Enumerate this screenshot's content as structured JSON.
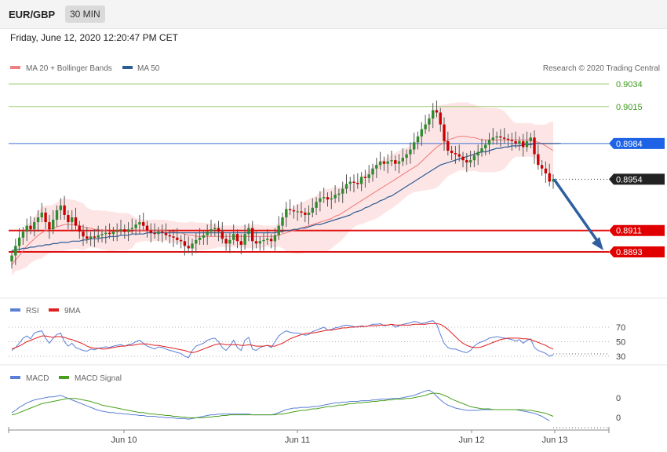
{
  "header": {
    "symbol": "EUR/GBP",
    "timeframe": "30 MIN"
  },
  "datetime": "Friday, June 12, 2020 12:20:47 PM CET",
  "copyright": "Research © 2020 Trading Central",
  "colors": {
    "ma20": "#f07878",
    "ma50": "#2e5c94",
    "bull": "#2e8b2e",
    "bear": "#cc0000",
    "band": "#fde0e0",
    "rsi": "#5b7fd6",
    "rsi_ma": "#e02020",
    "macd": "#5b7fd6",
    "macd_signal": "#4aa01e",
    "arrow": "#2e5fa0"
  },
  "chart_data": [
    {
      "type": "candlestick",
      "legend": [
        {
          "label": "MA 20 + Bollinger Bands",
          "color": "#f08080"
        },
        {
          "label": "MA 50",
          "color": "#2e5c94"
        }
      ],
      "ylim": [
        0.8875,
        0.905
      ],
      "x_ticks": [
        "Jun 10",
        "Jun 11",
        "Jun 12",
        "Jun 13"
      ],
      "last_price": 0.8954,
      "levels": [
        {
          "value": 0.9034,
          "label": "0.9034",
          "kind": "target-green"
        },
        {
          "value": 0.9015,
          "label": "0.9015",
          "kind": "target-green"
        },
        {
          "value": 0.8984,
          "label": "0.8984",
          "kind": "resistance-blue"
        },
        {
          "value": 0.8954,
          "label": "0.8954",
          "kind": "last"
        },
        {
          "value": 0.8911,
          "label": "0.8911",
          "kind": "support-red"
        },
        {
          "value": 0.8893,
          "label": "0.8893",
          "kind": "support-red"
        }
      ],
      "forecast_arrow": {
        "from": 0.8954,
        "to": 0.8893
      },
      "closes": [
        0.889,
        0.8898,
        0.8905,
        0.891,
        0.8915,
        0.8912,
        0.8918,
        0.8922,
        0.8926,
        0.8918,
        0.8912,
        0.892,
        0.8928,
        0.8932,
        0.8924,
        0.8918,
        0.8922,
        0.8915,
        0.891,
        0.8906,
        0.8904,
        0.8906,
        0.8905,
        0.8907,
        0.8908,
        0.8909,
        0.8908,
        0.891,
        0.8911,
        0.8912,
        0.891,
        0.8912,
        0.8913,
        0.8916,
        0.8918,
        0.8915,
        0.8911,
        0.8909,
        0.8908,
        0.891,
        0.8909,
        0.8907,
        0.8906,
        0.8905,
        0.8903,
        0.8902,
        0.8898,
        0.8896,
        0.89,
        0.8903,
        0.8905,
        0.8907,
        0.891,
        0.8912,
        0.8913,
        0.891,
        0.8904,
        0.89,
        0.8903,
        0.8908,
        0.8902,
        0.8899,
        0.8908,
        0.8913,
        0.8902,
        0.89,
        0.8902,
        0.8903,
        0.8904,
        0.8902,
        0.8907,
        0.8915,
        0.8922,
        0.8929,
        0.8928,
        0.8927,
        0.8927,
        0.8926,
        0.8924,
        0.8926,
        0.893,
        0.8935,
        0.8938,
        0.8939,
        0.8937,
        0.8938,
        0.8941,
        0.8942,
        0.8946,
        0.895,
        0.8952,
        0.8951,
        0.895,
        0.8956,
        0.8955,
        0.8958,
        0.8963,
        0.8966,
        0.8969,
        0.8967,
        0.8969,
        0.897,
        0.8967,
        0.8969,
        0.8972,
        0.8975,
        0.8979,
        0.8985,
        0.899,
        0.8996,
        0.9,
        0.9005,
        0.9012,
        0.901,
        0.9,
        0.8986,
        0.8978,
        0.8976,
        0.8975,
        0.8973,
        0.897,
        0.8968,
        0.897,
        0.8974,
        0.8977,
        0.898,
        0.8983,
        0.8987,
        0.8989,
        0.899,
        0.8989,
        0.8988,
        0.8987,
        0.8986,
        0.8984,
        0.8986,
        0.8981,
        0.8986,
        0.8989,
        0.8975,
        0.8966,
        0.8963,
        0.8959,
        0.8952,
        0.8954
      ],
      "ma20": [
        0.8882,
        0.8886,
        0.889,
        0.8894,
        0.8898,
        0.8901,
        0.8904,
        0.8907,
        0.8909,
        0.8911,
        0.8912,
        0.8913,
        0.8914,
        0.8915,
        0.8916,
        0.8916,
        0.8916,
        0.8916,
        0.8915,
        0.8914,
        0.8913,
        0.8913,
        0.8912,
        0.8912,
        0.8911,
        0.8911,
        0.891,
        0.891,
        0.891,
        0.891,
        0.891,
        0.891,
        0.891,
        0.8911,
        0.8911,
        0.8911,
        0.8911,
        0.8911,
        0.8911,
        0.8911,
        0.8911,
        0.8911,
        0.891,
        0.891,
        0.8909,
        0.8909,
        0.8908,
        0.8907,
        0.8907,
        0.8906,
        0.8906,
        0.8906,
        0.8906,
        0.8906,
        0.8906,
        0.8906,
        0.8906,
        0.8906,
        0.8906,
        0.8906,
        0.8906,
        0.8906,
        0.8906,
        0.8906,
        0.8906,
        0.8906,
        0.8906,
        0.8906,
        0.8906,
        0.8906,
        0.8906,
        0.8907,
        0.8908,
        0.8909,
        0.891,
        0.8911,
        0.8912,
        0.8913,
        0.8914,
        0.8915,
        0.8916,
        0.8917,
        0.8918,
        0.8919,
        0.892,
        0.8921,
        0.8923,
        0.8924,
        0.8926,
        0.8928,
        0.893,
        0.8932,
        0.8934,
        0.8936,
        0.8938,
        0.894,
        0.8942,
        0.8944,
        0.8946,
        0.8948,
        0.895,
        0.8952,
        0.8954,
        0.8956,
        0.8958,
        0.896,
        0.8962,
        0.8964,
        0.8966,
        0.8969,
        0.8972,
        0.8975,
        0.8978,
        0.8981,
        0.8983,
        0.8985,
        0.8987,
        0.8988,
        0.8989,
        0.899,
        0.899,
        0.899,
        0.8989,
        0.8989,
        0.8988,
        0.8987,
        0.8987,
        0.8987,
        0.8987,
        0.8987,
        0.8987,
        0.8987,
        0.8987,
        0.8987,
        0.8987,
        0.8987,
        0.8987,
        0.8987,
        0.8987,
        0.8986,
        0.8985,
        0.8984,
        0.8982,
        0.898,
        0.8978
      ],
      "ma50": [
        0.8894,
        0.8895,
        0.8895,
        0.8896,
        0.8896,
        0.8897,
        0.8897,
        0.8898,
        0.8898,
        0.8899,
        0.8899,
        0.89,
        0.89,
        0.8901,
        0.8901,
        0.8901,
        0.8902,
        0.8902,
        0.8902,
        0.8903,
        0.8903,
        0.8904,
        0.8904,
        0.8904,
        0.8905,
        0.8905,
        0.8906,
        0.8906,
        0.8906,
        0.8907,
        0.8907,
        0.8907,
        0.8908,
        0.8908,
        0.8908,
        0.8908,
        0.8909,
        0.8909,
        0.8909,
        0.8909,
        0.8909,
        0.8909,
        0.8909,
        0.8909,
        0.8909,
        0.8909,
        0.8909,
        0.8909,
        0.8909,
        0.8909,
        0.8909,
        0.8909,
        0.8909,
        0.8909,
        0.8909,
        0.8909,
        0.8909,
        0.8909,
        0.8909,
        0.8909,
        0.8909,
        0.8909,
        0.8909,
        0.8909,
        0.8909,
        0.8909,
        0.8909,
        0.8909,
        0.8909,
        0.8909,
        0.8909,
        0.891,
        0.891,
        0.8911,
        0.8911,
        0.8912,
        0.8912,
        0.8913,
        0.8913,
        0.8914,
        0.8915,
        0.8916,
        0.8916,
        0.8917,
        0.8918,
        0.8919,
        0.892,
        0.8921,
        0.8922,
        0.8923,
        0.8924,
        0.8926,
        0.8927,
        0.8928,
        0.893,
        0.8931,
        0.8933,
        0.8934,
        0.8936,
        0.8937,
        0.8939,
        0.894,
        0.8942,
        0.8944,
        0.8946,
        0.8948,
        0.895,
        0.8952,
        0.8954,
        0.8956,
        0.8958,
        0.896,
        0.8962,
        0.8964,
        0.8966,
        0.8967,
        0.8968,
        0.8969,
        0.897,
        0.8971,
        0.8972,
        0.8973,
        0.8974,
        0.8975,
        0.8976,
        0.8977,
        0.8977,
        0.8978,
        0.8979,
        0.898,
        0.898,
        0.8981,
        0.8981,
        0.8982,
        0.8982,
        0.8982,
        0.8983,
        0.8983,
        0.8983,
        0.8984,
        0.8984,
        0.8984,
        0.8984,
        0.8984,
        0.8984,
        0.8984,
        0.8984
      ]
    },
    {
      "type": "line",
      "title": "RSI",
      "series": [
        {
          "name": "RSI",
          "values": [
            38,
            42,
            48,
            55,
            58,
            54,
            62,
            64,
            65,
            55,
            48,
            55,
            60,
            62,
            50,
            44,
            48,
            42,
            40,
            38,
            37,
            40,
            39,
            41,
            42,
            43,
            42,
            44,
            45,
            46,
            44,
            46,
            47,
            50,
            52,
            48,
            44,
            42,
            40,
            43,
            42,
            40,
            38,
            37,
            35,
            34,
            30,
            28,
            38,
            44,
            46,
            48,
            52,
            54,
            55,
            50,
            42,
            38,
            44,
            52,
            42,
            38,
            52,
            56,
            40,
            38,
            42,
            44,
            45,
            42,
            50,
            58,
            62,
            65,
            63,
            62,
            62,
            61,
            59,
            60,
            64,
            66,
            68,
            70,
            66,
            67,
            69,
            70,
            72,
            73,
            72,
            71,
            70,
            72,
            71,
            72,
            74,
            74,
            75,
            72,
            73,
            74,
            70,
            72,
            74,
            75,
            76,
            78,
            77,
            75,
            76,
            78,
            79,
            74,
            60,
            48,
            42,
            40,
            40,
            38,
            36,
            35,
            38,
            44,
            48,
            50,
            52,
            55,
            56,
            57,
            56,
            55,
            54,
            53,
            51,
            53,
            48,
            52,
            54,
            42,
            38,
            36,
            34,
            30,
            32
          ]
        },
        {
          "name": "9MA",
          "values": [
            40,
            42,
            44,
            47,
            50,
            52,
            54,
            56,
            58,
            58,
            57,
            56,
            57,
            57,
            56,
            54,
            53,
            51,
            49,
            47,
            44,
            42,
            41,
            41,
            40,
            40,
            41,
            42,
            43,
            44,
            44,
            45,
            45,
            46,
            47,
            47,
            47,
            46,
            45,
            45,
            44,
            43,
            42,
            41,
            40,
            39,
            38,
            36,
            35,
            36,
            38,
            40,
            42,
            44,
            46,
            47,
            47,
            46,
            46,
            46,
            46,
            45,
            45,
            46,
            45,
            44,
            44,
            44,
            45,
            44,
            44,
            46,
            48,
            51,
            54,
            56,
            58,
            60,
            61,
            62,
            62,
            63,
            64,
            65,
            66,
            66,
            67,
            68,
            69,
            69,
            70,
            70,
            71,
            71,
            71,
            72,
            72,
            72,
            73,
            73,
            73,
            74,
            73,
            73,
            73,
            73,
            73,
            74,
            74,
            74,
            74,
            75,
            75,
            75,
            74,
            71,
            67,
            62,
            57,
            52,
            48,
            45,
            43,
            42,
            42,
            43,
            45,
            47,
            49,
            51,
            53,
            54,
            55,
            55,
            55,
            55,
            54,
            54,
            53,
            51,
            49,
            47,
            45,
            42,
            40
          ]
        }
      ],
      "levels": [
        70,
        50,
        30
      ]
    },
    {
      "type": "line",
      "title": "MACD",
      "series": [
        {
          "name": "MACD",
          "values": [
            -5,
            -2,
            2,
            5,
            8,
            10,
            12,
            13,
            14,
            15,
            16,
            16,
            17,
            18,
            16,
            14,
            12,
            10,
            8,
            6,
            4,
            2,
            0,
            -2,
            -3,
            -4,
            -5,
            -5,
            -6,
            -6,
            -7,
            -7,
            -8,
            -8,
            -9,
            -9,
            -10,
            -10,
            -10,
            -11,
            -11,
            -12,
            -12,
            -12,
            -13,
            -13,
            -13,
            -14,
            -13,
            -12,
            -11,
            -10,
            -9,
            -8,
            -8,
            -7,
            -7,
            -7,
            -7,
            -7,
            -7,
            -7,
            -7,
            -7,
            -8,
            -8,
            -8,
            -8,
            -8,
            -8,
            -7,
            -5,
            -3,
            -1,
            0,
            1,
            1,
            2,
            2,
            2,
            3,
            3,
            4,
            5,
            6,
            7,
            8,
            8,
            9,
            9,
            10,
            10,
            10,
            11,
            11,
            11,
            12,
            12,
            13,
            13,
            13,
            14,
            14,
            14,
            15,
            16,
            17,
            18,
            20,
            22,
            24,
            25,
            22,
            17,
            12,
            8,
            5,
            3,
            1,
            0,
            -1,
            -2,
            -2,
            -2,
            -2,
            -1,
            -1,
            -1,
            -1,
            -1,
            -1,
            -1,
            -1,
            -1,
            -1,
            -2,
            -3,
            -4,
            -5,
            -6,
            -8,
            -10,
            -13,
            -16
          ]
        },
        {
          "name": "MACD Signal",
          "values": [
            -8,
            -7,
            -5,
            -3,
            -1,
            1,
            3,
            5,
            7,
            8,
            9,
            10,
            11,
            12,
            13,
            14,
            14,
            14,
            13,
            12,
            11,
            10,
            8,
            7,
            5,
            4,
            3,
            2,
            1,
            0,
            -1,
            -2,
            -3,
            -4,
            -5,
            -5,
            -6,
            -7,
            -7,
            -8,
            -8,
            -9,
            -9,
            -10,
            -10,
            -11,
            -11,
            -12,
            -12,
            -12,
            -12,
            -12,
            -11,
            -11,
            -10,
            -10,
            -9,
            -9,
            -8,
            -8,
            -8,
            -8,
            -8,
            -8,
            -8,
            -8,
            -8,
            -8,
            -8,
            -8,
            -8,
            -7,
            -7,
            -6,
            -5,
            -4,
            -3,
            -2,
            -2,
            -1,
            0,
            0,
            1,
            2,
            3,
            3,
            4,
            5,
            5,
            6,
            7,
            7,
            8,
            8,
            9,
            9,
            10,
            10,
            11,
            11,
            12,
            12,
            13,
            13,
            13,
            14,
            14,
            15,
            16,
            17,
            18,
            20,
            21,
            21,
            20,
            18,
            16,
            13,
            11,
            9,
            7,
            5,
            3,
            2,
            1,
            0,
            0,
            0,
            -1,
            -1,
            -1,
            -1,
            -1,
            -1,
            -1,
            -1,
            -1,
            -2,
            -2,
            -3,
            -4,
            -5,
            -6,
            -8,
            -10
          ]
        }
      ],
      "y_labels": [
        "0",
        "0"
      ]
    }
  ]
}
